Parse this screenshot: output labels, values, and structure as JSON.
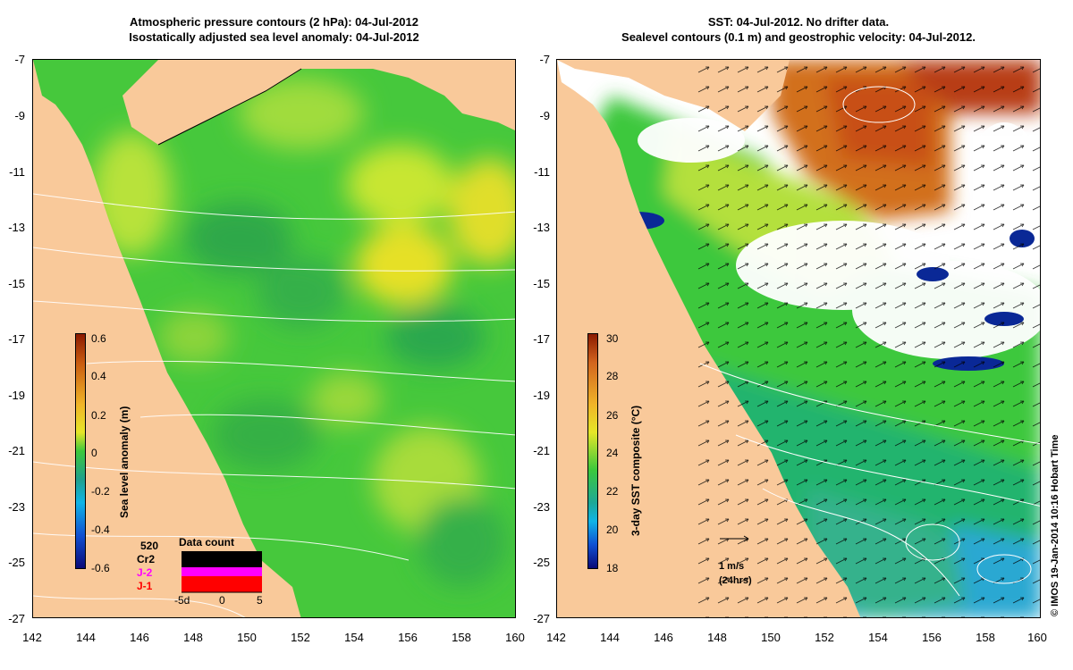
{
  "left_panel": {
    "title_line1": "Atmospheric pressure contours (2 hPa): 04-Jul-2012",
    "title_line2": "Isostatically adjusted sea level anomaly: 04-Jul-2012",
    "colorbar": {
      "label": "Sea level anomaly (m)",
      "ticks": [
        "0.6",
        "0.4",
        "0.2",
        "0",
        "-0.2",
        "-0.4",
        "-0.6"
      ],
      "range": [
        -0.6,
        0.6
      ]
    },
    "data_count": {
      "title": "Data count",
      "total": "520",
      "satellites": [
        "Cr2",
        "J-2",
        "J-1"
      ],
      "satellite_colors": [
        "#000000",
        "#ff00ff",
        "#ff0000"
      ],
      "x_ticks": [
        "-5d",
        "0",
        "5"
      ]
    }
  },
  "right_panel": {
    "title_line1": "SST: 04-Jul-2012. No drifter data.",
    "title_line2": "Sealevel contours (0.1 m) and geostrophic velocity: 04-Jul-2012.",
    "colorbar": {
      "label": "3-day SST composite (°C)",
      "ticks": [
        "30",
        "28",
        "26",
        "24",
        "22",
        "20",
        "18"
      ],
      "range": [
        18,
        30
      ]
    },
    "velocity_scale": {
      "line1": "1 m/s",
      "line2": "(24hrs)"
    }
  },
  "axes": {
    "lat_ticks": [
      "-7",
      "-9",
      "-11",
      "-13",
      "-15",
      "-17",
      "-19",
      "-21",
      "-23",
      "-25",
      "-27"
    ],
    "lon_ticks": [
      "142",
      "144",
      "146",
      "148",
      "150",
      "152",
      "154",
      "156",
      "158",
      "160"
    ],
    "lat_range": [
      -27,
      -7
    ],
    "lon_range": [
      142,
      160
    ]
  },
  "credit": "© IMOS 19-Jan-2014 10:16 Hobart Time",
  "colors": {
    "land": "#f9c99a",
    "ocean_base": "#3cc83c",
    "contour": "#ffffff"
  }
}
